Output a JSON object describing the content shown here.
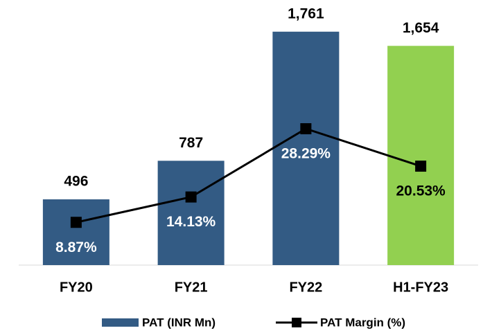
{
  "chart_data": {
    "type": "bar-line",
    "categories": [
      "FY20",
      "FY21",
      "FY22",
      "H1-FY23"
    ],
    "series": [
      {
        "name": "PAT (INR Mn)",
        "type": "bar",
        "color": "#335b84",
        "colors": [
          "#335b84",
          "#335b84",
          "#335b84",
          "#92d050"
        ],
        "values": [
          496,
          787,
          1761,
          1654
        ],
        "value_labels": [
          "496",
          "787",
          "1,761",
          "1,654"
        ]
      },
      {
        "name": "PAT Margin (%)",
        "type": "line",
        "color": "#000000",
        "axis": "y2",
        "values": [
          8.87,
          14.13,
          28.29,
          20.53
        ],
        "value_labels": [
          "8.87%",
          "14.13%",
          "28.29%",
          "20.53%"
        ]
      }
    ],
    "ylim": [
      0,
      2000
    ],
    "y2lim": [
      0,
      55
    ],
    "grid": false,
    "legend": "bottom"
  }
}
